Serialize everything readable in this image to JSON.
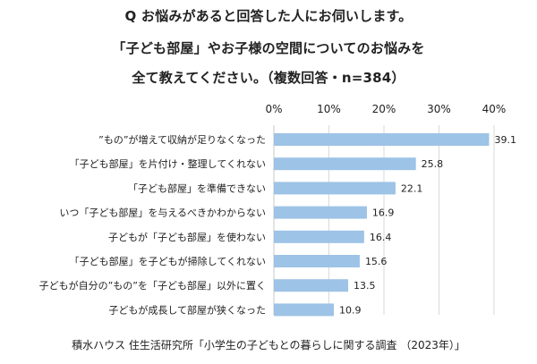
{
  "title": {
    "line1": "Q お悩みがあると回答した人にお伺いします。",
    "line2": "「子ども部屋」やお子様の空間についてのお悩みを",
    "line3": "全て教えてください。（複数回答・n=384）"
  },
  "source": "積水ハウス 住生活研究所「小学生の子どもとの暮らしに関する調査 （2023年）」",
  "colors": {
    "bar": "#9dc3e6",
    "grid": "#d9d9d9",
    "axis": "#c8c8c8",
    "text": "#222222"
  },
  "chart_data": {
    "type": "bar",
    "orientation": "horizontal",
    "categories": [
      "”もの”が増えて収納が足りなくなった",
      "「子ども部屋」を片付け・整理してくれない",
      "「子ども部屋」を準備できない",
      "いつ「子ども部屋」を与えるべきかわからない",
      "子どもが「子ども部屋」を使わない",
      "「子ども部屋」を子どもが掃除してくれない",
      "子どもが自分の”もの”を「子ども部屋」以外に置く",
      "子どもが成長して部屋が狭くなった"
    ],
    "values": [
      39.1,
      25.8,
      22.1,
      16.9,
      16.4,
      15.6,
      13.5,
      10.9
    ],
    "value_labels": [
      "39.1",
      "25.8",
      "22.1",
      "16.9",
      "16.4",
      "15.6",
      "13.5",
      "10.9"
    ],
    "xlim": [
      0,
      40
    ],
    "xticks": [
      0,
      10,
      20,
      30,
      40
    ],
    "xtick_labels": [
      "0%",
      "10%",
      "20%",
      "30%",
      "40%"
    ],
    "grid": true,
    "tick_position": "top"
  }
}
